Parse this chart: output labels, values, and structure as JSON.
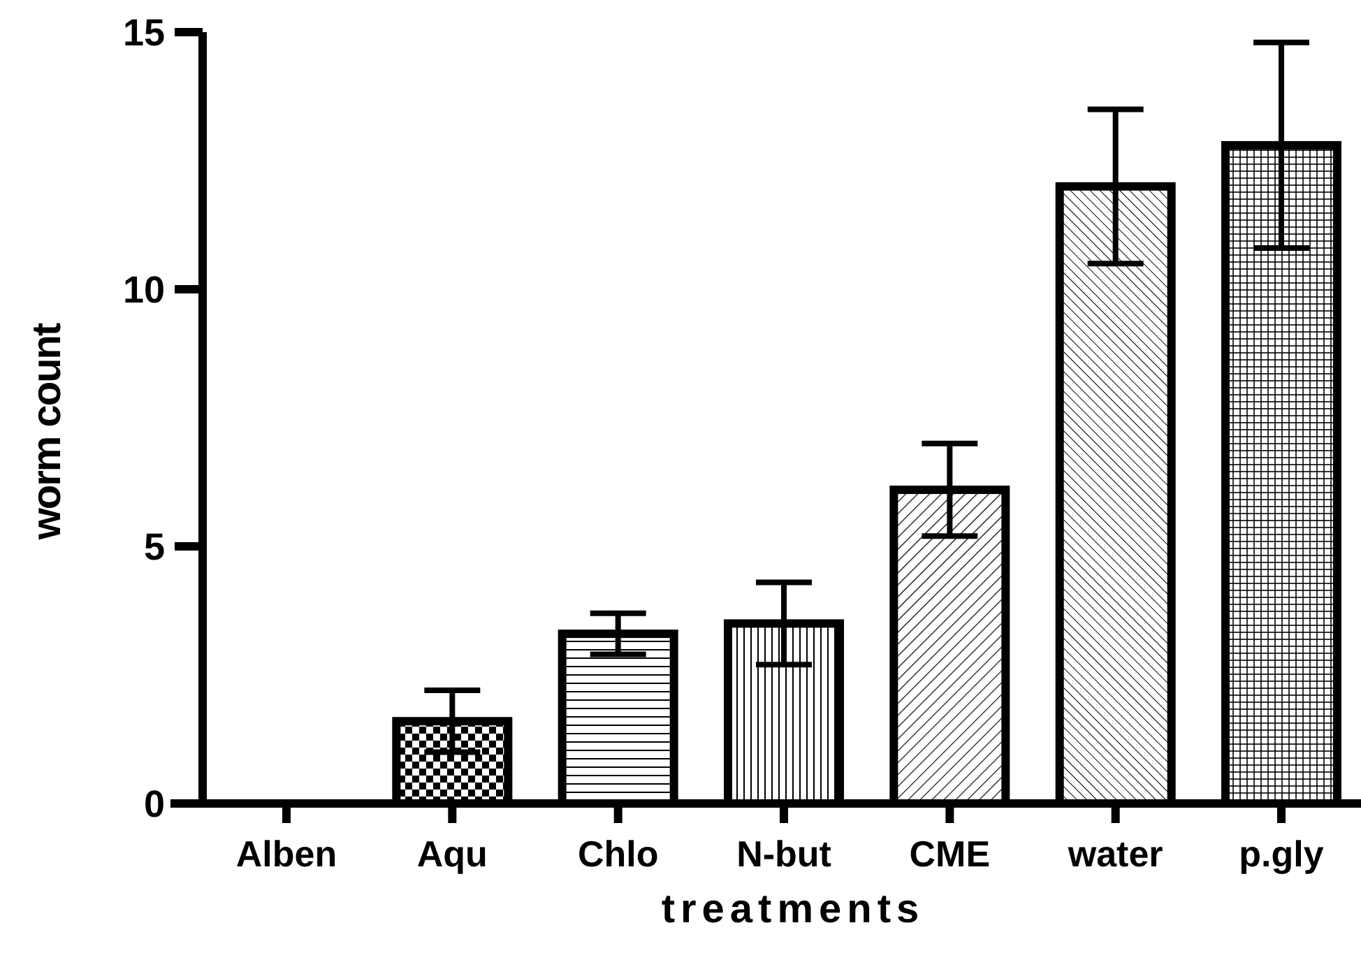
{
  "chart_data": {
    "type": "bar",
    "xlabel": "treatments",
    "ylabel": "worm count",
    "categories": [
      "Alben",
      "Aqu",
      "Chlo",
      "N-but",
      "CME",
      "water",
      "p.gly"
    ],
    "values": [
      0,
      1.6,
      3.3,
      3.5,
      6.1,
      12,
      12.8
    ],
    "errors": [
      null,
      0.6,
      0.4,
      0.8,
      0.9,
      1.5,
      2.0
    ],
    "color": "#000000",
    "ylim": [
      0,
      15
    ],
    "yticks": [
      0,
      5,
      10,
      15
    ],
    "grid": false
  }
}
